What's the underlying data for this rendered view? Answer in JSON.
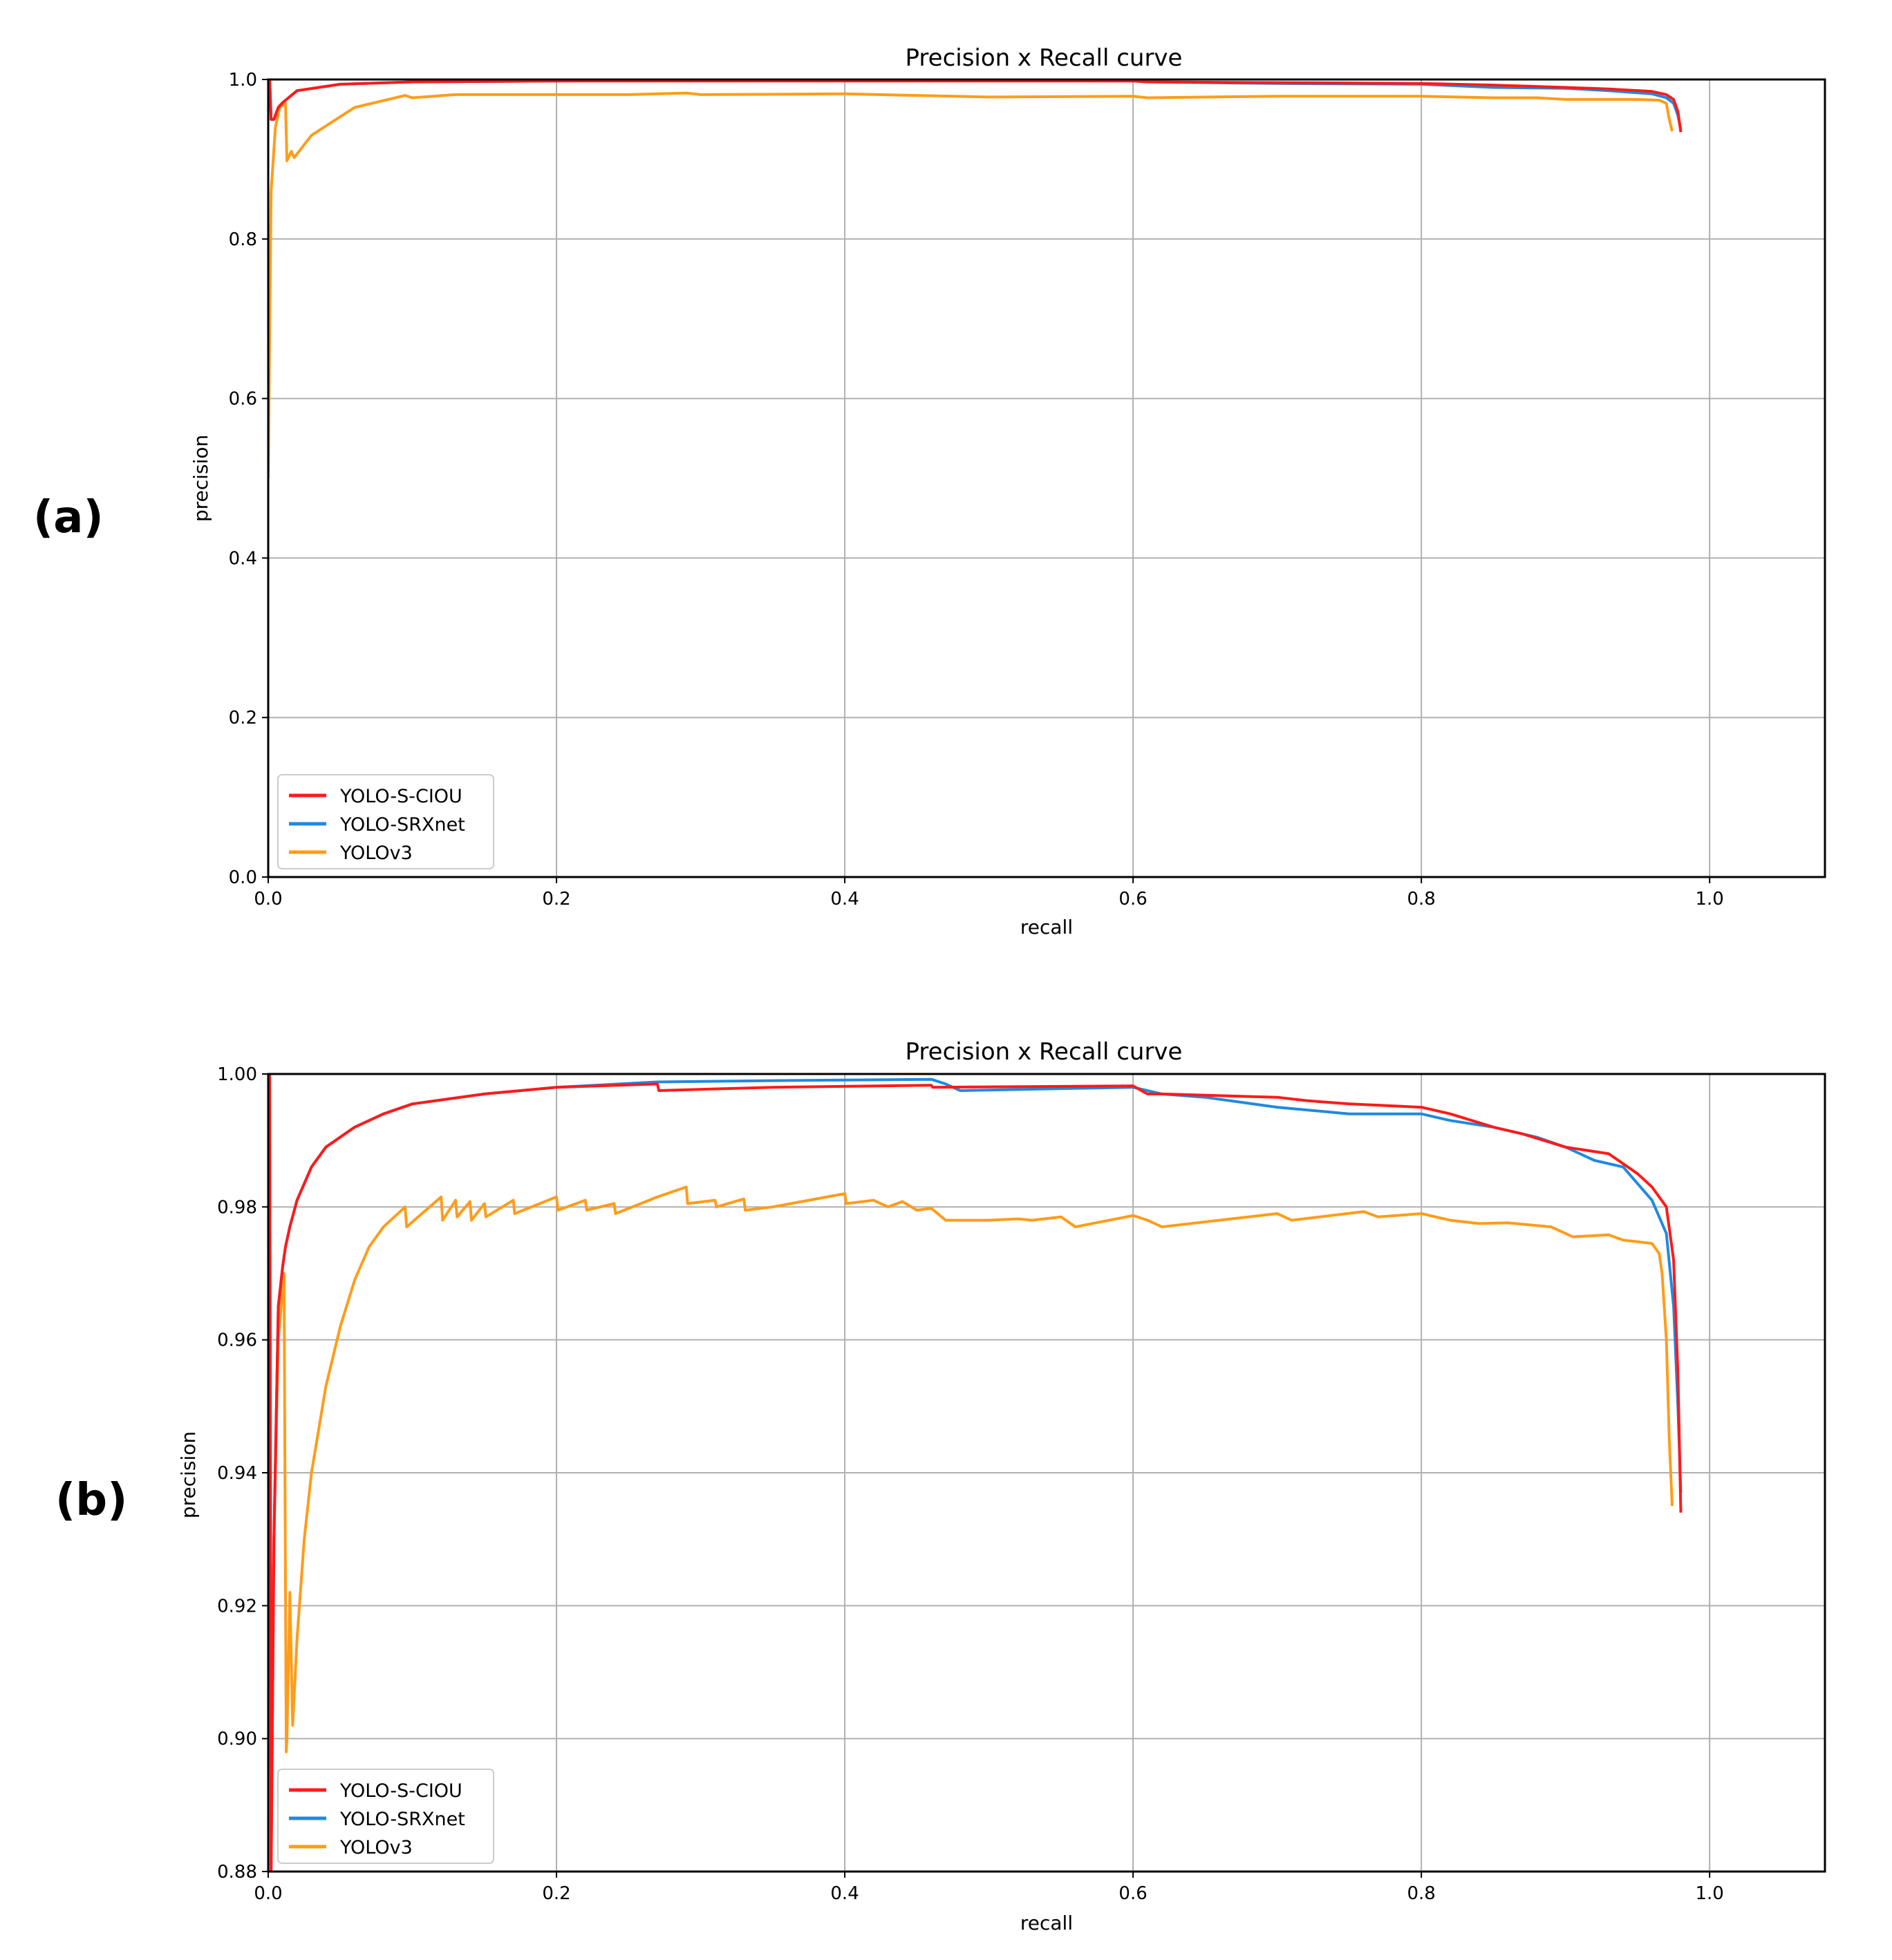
{
  "chart_data": [
    {
      "panel_label": "(a)",
      "type": "line",
      "title": "Precision x Recall curve",
      "xlabel": "recall",
      "ylabel": "precision",
      "xlim": [
        0.0,
        1.08
      ],
      "ylim": [
        0.0,
        1.0
      ],
      "xticks": [
        "0.0",
        "0.2",
        "0.4",
        "0.6",
        "0.8",
        "1.0"
      ],
      "yticks": [
        "0.0",
        "0.2",
        "0.4",
        "0.6",
        "0.8",
        "1.0"
      ],
      "grid": true,
      "legend_position": "lower-left",
      "series": [
        {
          "name": "YOLO-S-CIOU",
          "color": "#ff1a1a",
          "x": [
            0.001,
            0.002,
            0.004,
            0.007,
            0.01,
            0.02,
            0.05,
            0.1,
            0.2,
            0.27,
            0.35,
            0.46,
            0.6,
            0.61,
            0.7,
            0.8,
            0.85,
            0.9,
            0.93,
            0.96,
            0.97,
            0.975,
            0.978,
            0.98
          ],
          "y": [
            1.0,
            0.95,
            0.95,
            0.965,
            0.971,
            0.986,
            0.994,
            0.997,
            0.998,
            0.998,
            0.998,
            0.998,
            0.998,
            0.997,
            0.996,
            0.995,
            0.993,
            0.99,
            0.988,
            0.985,
            0.981,
            0.975,
            0.96,
            0.934
          ]
        },
        {
          "name": "YOLO-SRXnet",
          "color": "#1f8ae0",
          "x": [
            0.001,
            0.002,
            0.004,
            0.007,
            0.01,
            0.02,
            0.05,
            0.1,
            0.2,
            0.27,
            0.35,
            0.46,
            0.6,
            0.61,
            0.7,
            0.8,
            0.85,
            0.9,
            0.93,
            0.96,
            0.97,
            0.975,
            0.978,
            0.98
          ],
          "y": [
            1.0,
            0.95,
            0.95,
            0.965,
            0.971,
            0.986,
            0.994,
            0.997,
            0.998,
            0.999,
            0.999,
            0.999,
            0.998,
            0.997,
            0.995,
            0.994,
            0.99,
            0.989,
            0.986,
            0.982,
            0.977,
            0.97,
            0.955,
            0.937
          ]
        },
        {
          "name": "YOLOv3",
          "color": "#ff9c1a",
          "x": [
            0.0,
            0.002,
            0.005,
            0.008,
            0.012,
            0.013,
            0.016,
            0.018,
            0.03,
            0.06,
            0.095,
            0.1,
            0.13,
            0.2,
            0.25,
            0.29,
            0.3,
            0.4,
            0.45,
            0.5,
            0.6,
            0.61,
            0.7,
            0.76,
            0.8,
            0.85,
            0.88,
            0.9,
            0.95,
            0.965,
            0.97,
            0.972,
            0.974
          ],
          "y": [
            0.5,
            0.86,
            0.94,
            0.965,
            0.97,
            0.898,
            0.91,
            0.902,
            0.93,
            0.965,
            0.98,
            0.977,
            0.981,
            0.981,
            0.981,
            0.983,
            0.981,
            0.982,
            0.98,
            0.978,
            0.979,
            0.977,
            0.979,
            0.979,
            0.979,
            0.977,
            0.977,
            0.975,
            0.975,
            0.974,
            0.97,
            0.95,
            0.935
          ]
        }
      ]
    },
    {
      "panel_label": "(b)",
      "type": "line",
      "title": "Precision x Recall curve",
      "xlabel": "recall",
      "ylabel": "precision",
      "xlim": [
        0.0,
        1.08
      ],
      "ylim": [
        0.88,
        1.0
      ],
      "xticks": [
        "0.0",
        "0.2",
        "0.4",
        "0.6",
        "0.8",
        "1.0"
      ],
      "yticks": [
        "0.88",
        "0.90",
        "0.92",
        "0.94",
        "0.96",
        "0.98",
        "1.00"
      ],
      "grid": true,
      "legend_position": "lower-left",
      "series": [
        {
          "name": "YOLO-S-CIOU",
          "color": "#ff1a1a",
          "x": [
            0.001,
            0.002,
            0.004,
            0.007,
            0.01,
            0.012,
            0.015,
            0.02,
            0.03,
            0.04,
            0.06,
            0.08,
            0.1,
            0.15,
            0.2,
            0.27,
            0.271,
            0.35,
            0.46,
            0.461,
            0.6,
            0.61,
            0.62,
            0.7,
            0.72,
            0.75,
            0.8,
            0.82,
            0.85,
            0.87,
            0.9,
            0.93,
            0.95,
            0.96,
            0.97,
            0.975,
            0.978,
            0.98
          ],
          "y": [
            1.0,
            0.88,
            0.93,
            0.965,
            0.971,
            0.974,
            0.977,
            0.981,
            0.986,
            0.989,
            0.992,
            0.994,
            0.9955,
            0.997,
            0.998,
            0.9985,
            0.9975,
            0.998,
            0.9983,
            0.998,
            0.9982,
            0.997,
            0.997,
            0.9965,
            0.996,
            0.9955,
            0.995,
            0.994,
            0.992,
            0.991,
            0.989,
            0.988,
            0.985,
            0.983,
            0.98,
            0.972,
            0.955,
            0.934
          ]
        },
        {
          "name": "YOLO-SRXnet",
          "color": "#1f8ae0",
          "x": [
            0.001,
            0.002,
            0.004,
            0.007,
            0.01,
            0.012,
            0.015,
            0.02,
            0.03,
            0.04,
            0.06,
            0.08,
            0.1,
            0.15,
            0.2,
            0.27,
            0.35,
            0.46,
            0.47,
            0.48,
            0.6,
            0.62,
            0.65,
            0.7,
            0.75,
            0.8,
            0.82,
            0.85,
            0.88,
            0.9,
            0.92,
            0.94,
            0.96,
            0.97,
            0.975,
            0.978,
            0.98
          ],
          "y": [
            1.0,
            0.88,
            0.93,
            0.965,
            0.971,
            0.974,
            0.977,
            0.981,
            0.986,
            0.989,
            0.992,
            0.994,
            0.9955,
            0.997,
            0.998,
            0.9988,
            0.999,
            0.9992,
            0.9985,
            0.9975,
            0.998,
            0.997,
            0.9965,
            0.995,
            0.994,
            0.994,
            0.993,
            0.992,
            0.9905,
            0.989,
            0.987,
            0.986,
            0.981,
            0.976,
            0.965,
            0.95,
            0.937
          ]
        },
        {
          "name": "YOLOv3",
          "color": "#ff9c1a",
          "x": [
            0.0,
            0.004,
            0.007,
            0.009,
            0.011,
            0.0125,
            0.013,
            0.015,
            0.017,
            0.02,
            0.025,
            0.03,
            0.04,
            0.05,
            0.06,
            0.07,
            0.08,
            0.095,
            0.096,
            0.12,
            0.121,
            0.13,
            0.131,
            0.14,
            0.141,
            0.15,
            0.151,
            0.17,
            0.171,
            0.2,
            0.201,
            0.22,
            0.221,
            0.24,
            0.241,
            0.27,
            0.29,
            0.291,
            0.31,
            0.311,
            0.33,
            0.331,
            0.35,
            0.4,
            0.401,
            0.42,
            0.43,
            0.44,
            0.45,
            0.46,
            0.47,
            0.5,
            0.52,
            0.53,
            0.55,
            0.56,
            0.6,
            0.61,
            0.62,
            0.7,
            0.71,
            0.76,
            0.77,
            0.8,
            0.82,
            0.84,
            0.86,
            0.88,
            0.89,
            0.9,
            0.905,
            0.93,
            0.94,
            0.96,
            0.965,
            0.967,
            0.97,
            0.972,
            0.974
          ],
          "y": [
            0.88,
            0.93,
            0.96,
            0.965,
            0.97,
            0.898,
            0.9,
            0.922,
            0.902,
            0.915,
            0.93,
            0.94,
            0.953,
            0.962,
            0.969,
            0.974,
            0.977,
            0.98,
            0.977,
            0.9815,
            0.978,
            0.981,
            0.9785,
            0.9808,
            0.978,
            0.9805,
            0.9785,
            0.981,
            0.979,
            0.9815,
            0.9795,
            0.981,
            0.9795,
            0.9805,
            0.979,
            0.9815,
            0.983,
            0.9805,
            0.981,
            0.98,
            0.9812,
            0.9795,
            0.98,
            0.982,
            0.9805,
            0.981,
            0.98,
            0.9808,
            0.9795,
            0.9798,
            0.978,
            0.978,
            0.9782,
            0.978,
            0.9785,
            0.977,
            0.9787,
            0.978,
            0.977,
            0.979,
            0.978,
            0.9793,
            0.9785,
            0.979,
            0.978,
            0.9775,
            0.9776,
            0.9772,
            0.977,
            0.976,
            0.9755,
            0.9758,
            0.975,
            0.9745,
            0.973,
            0.97,
            0.96,
            0.945,
            0.935
          ]
        }
      ]
    }
  ]
}
